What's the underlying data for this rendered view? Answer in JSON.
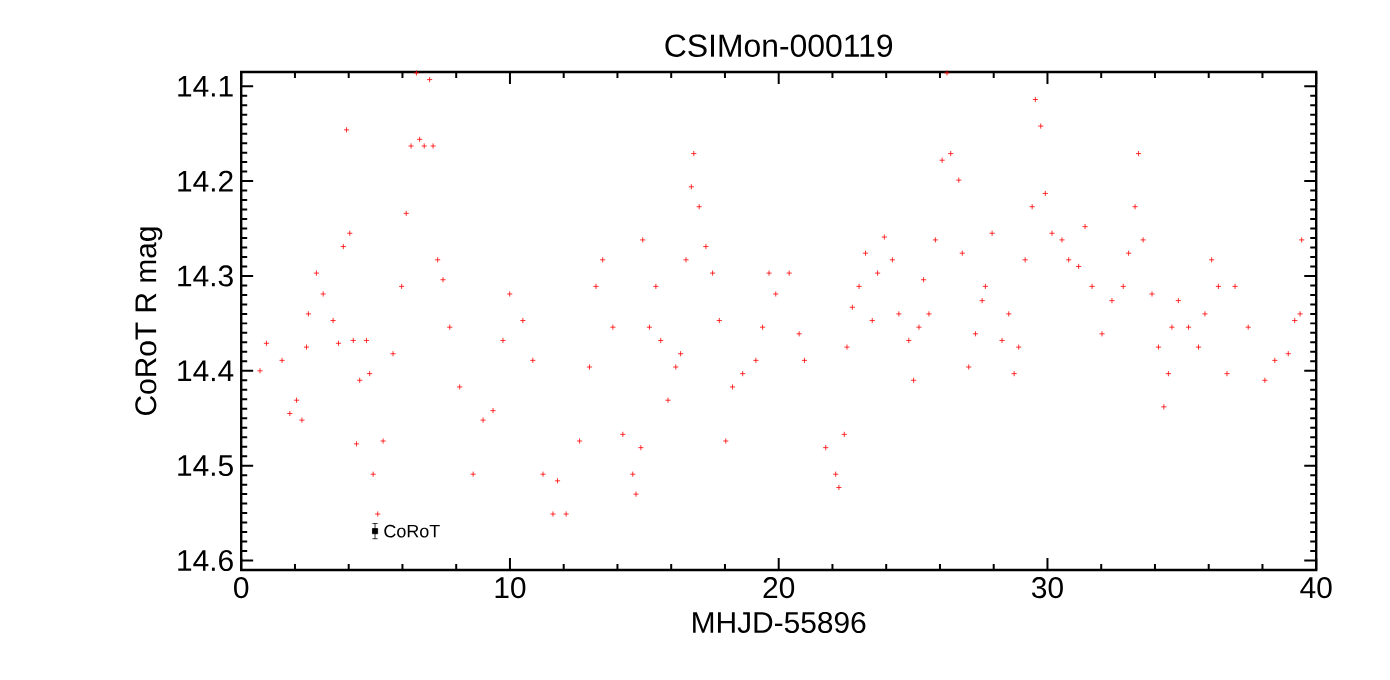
{
  "chart_data": {
    "type": "scatter",
    "title": "CSIMon-000119",
    "xlabel": "MHJD-55896",
    "ylabel": "CoRoT R mag",
    "xlim": [
      0,
      40
    ],
    "ylim": [
      14.61,
      14.085
    ],
    "xticks": [
      0,
      10,
      20,
      30,
      40
    ],
    "yticks": [
      14.1,
      14.2,
      14.3,
      14.4,
      14.5,
      14.6
    ],
    "marker": "cross",
    "grid": false,
    "legend": false,
    "series": [
      {
        "color": "#ff0000",
        "x": [
          0.7,
          0.94,
          1.52,
          1.81,
          2.06,
          2.26,
          2.43,
          2.5,
          2.8,
          3.05,
          3.42,
          3.62,
          3.8,
          3.92,
          4.04,
          4.17,
          4.29,
          4.41,
          4.66,
          4.78,
          4.91,
          5.08,
          5.28,
          5.65,
          5.97,
          6.14,
          6.32,
          6.52,
          6.64,
          6.81,
          7.01,
          7.14,
          7.31,
          7.51,
          7.76,
          8.13,
          8.63,
          9.0,
          9.37,
          9.74,
          9.99,
          10.48,
          10.85,
          11.23,
          11.6,
          11.77,
          12.09,
          12.59,
          12.96,
          13.2,
          13.45,
          13.83,
          14.2,
          14.57,
          14.69,
          14.87,
          14.94,
          15.19,
          15.43,
          15.61,
          15.88,
          16.17,
          16.35,
          16.55,
          16.75,
          16.84,
          17.04,
          17.29,
          17.54,
          17.79,
          18.03,
          18.28,
          18.66,
          19.15,
          19.4,
          19.64,
          19.89,
          20.39,
          20.76,
          20.96,
          21.75,
          22.12,
          22.24,
          22.44,
          22.54,
          22.74,
          22.99,
          23.23,
          23.48,
          23.68,
          23.93,
          24.23,
          24.47,
          24.84,
          25.02,
          25.22,
          25.39,
          25.59,
          25.83,
          26.08,
          26.26,
          26.4,
          26.7,
          26.83,
          27.07,
          27.32,
          27.57,
          27.69,
          27.94,
          28.31,
          28.56,
          28.76,
          28.93,
          29.17,
          29.43,
          29.55,
          29.75,
          29.92,
          30.17,
          30.54,
          30.79,
          31.16,
          31.4,
          31.66,
          32.03,
          32.4,
          32.82,
          33.02,
          33.26,
          33.39,
          33.56,
          33.89,
          34.13,
          34.33,
          34.5,
          34.63,
          34.87,
          35.25,
          35.62,
          35.86,
          36.11,
          36.36,
          36.68,
          36.98,
          37.47,
          38.09,
          38.46,
          38.96,
          39.2,
          39.4,
          39.46
        ],
        "values": [
          14.4,
          14.371,
          14.389,
          14.445,
          14.431,
          14.452,
          14.375,
          14.34,
          14.297,
          14.319,
          14.347,
          14.371,
          14.269,
          14.146,
          14.255,
          14.368,
          14.477,
          14.41,
          14.368,
          14.403,
          14.509,
          14.551,
          14.474,
          14.382,
          14.311,
          14.234,
          14.163,
          14.086,
          14.156,
          14.163,
          14.093,
          14.163,
          14.283,
          14.304,
          14.354,
          14.417,
          14.509,
          14.452,
          14.442,
          14.368,
          14.319,
          14.347,
          14.389,
          14.509,
          14.551,
          14.516,
          14.551,
          14.474,
          14.396,
          14.311,
          14.283,
          14.354,
          14.467,
          14.509,
          14.53,
          14.481,
          14.262,
          14.354,
          14.311,
          14.368,
          14.431,
          14.396,
          14.382,
          14.283,
          14.206,
          14.171,
          14.227,
          14.269,
          14.297,
          14.347,
          14.474,
          14.417,
          14.403,
          14.389,
          14.354,
          14.297,
          14.319,
          14.297,
          14.361,
          14.389,
          14.481,
          14.509,
          14.523,
          14.467,
          14.375,
          14.333,
          14.311,
          14.276,
          14.347,
          14.297,
          14.259,
          14.283,
          14.34,
          14.368,
          14.41,
          14.354,
          14.304,
          14.34,
          14.262,
          14.178,
          14.086,
          14.171,
          14.199,
          14.276,
          14.396,
          14.361,
          14.326,
          14.311,
          14.255,
          14.368,
          14.34,
          14.403,
          14.375,
          14.283,
          14.227,
          14.114,
          14.142,
          14.213,
          14.255,
          14.262,
          14.283,
          14.29,
          14.248,
          14.311,
          14.361,
          14.326,
          14.311,
          14.276,
          14.227,
          14.171,
          14.262,
          14.319,
          14.375,
          14.438,
          14.403,
          14.354,
          14.326,
          14.354,
          14.375,
          14.34,
          14.283,
          14.311,
          14.403,
          14.311,
          14.354,
          14.41,
          14.389,
          14.382,
          14.347,
          14.34,
          14.262
        ]
      },
      {
        "name": "CoRoT",
        "color": "#000000",
        "marker": "square",
        "x": [
          4.98
        ],
        "values": [
          14.569
        ],
        "errors": [
          0.008
        ]
      }
    ]
  }
}
